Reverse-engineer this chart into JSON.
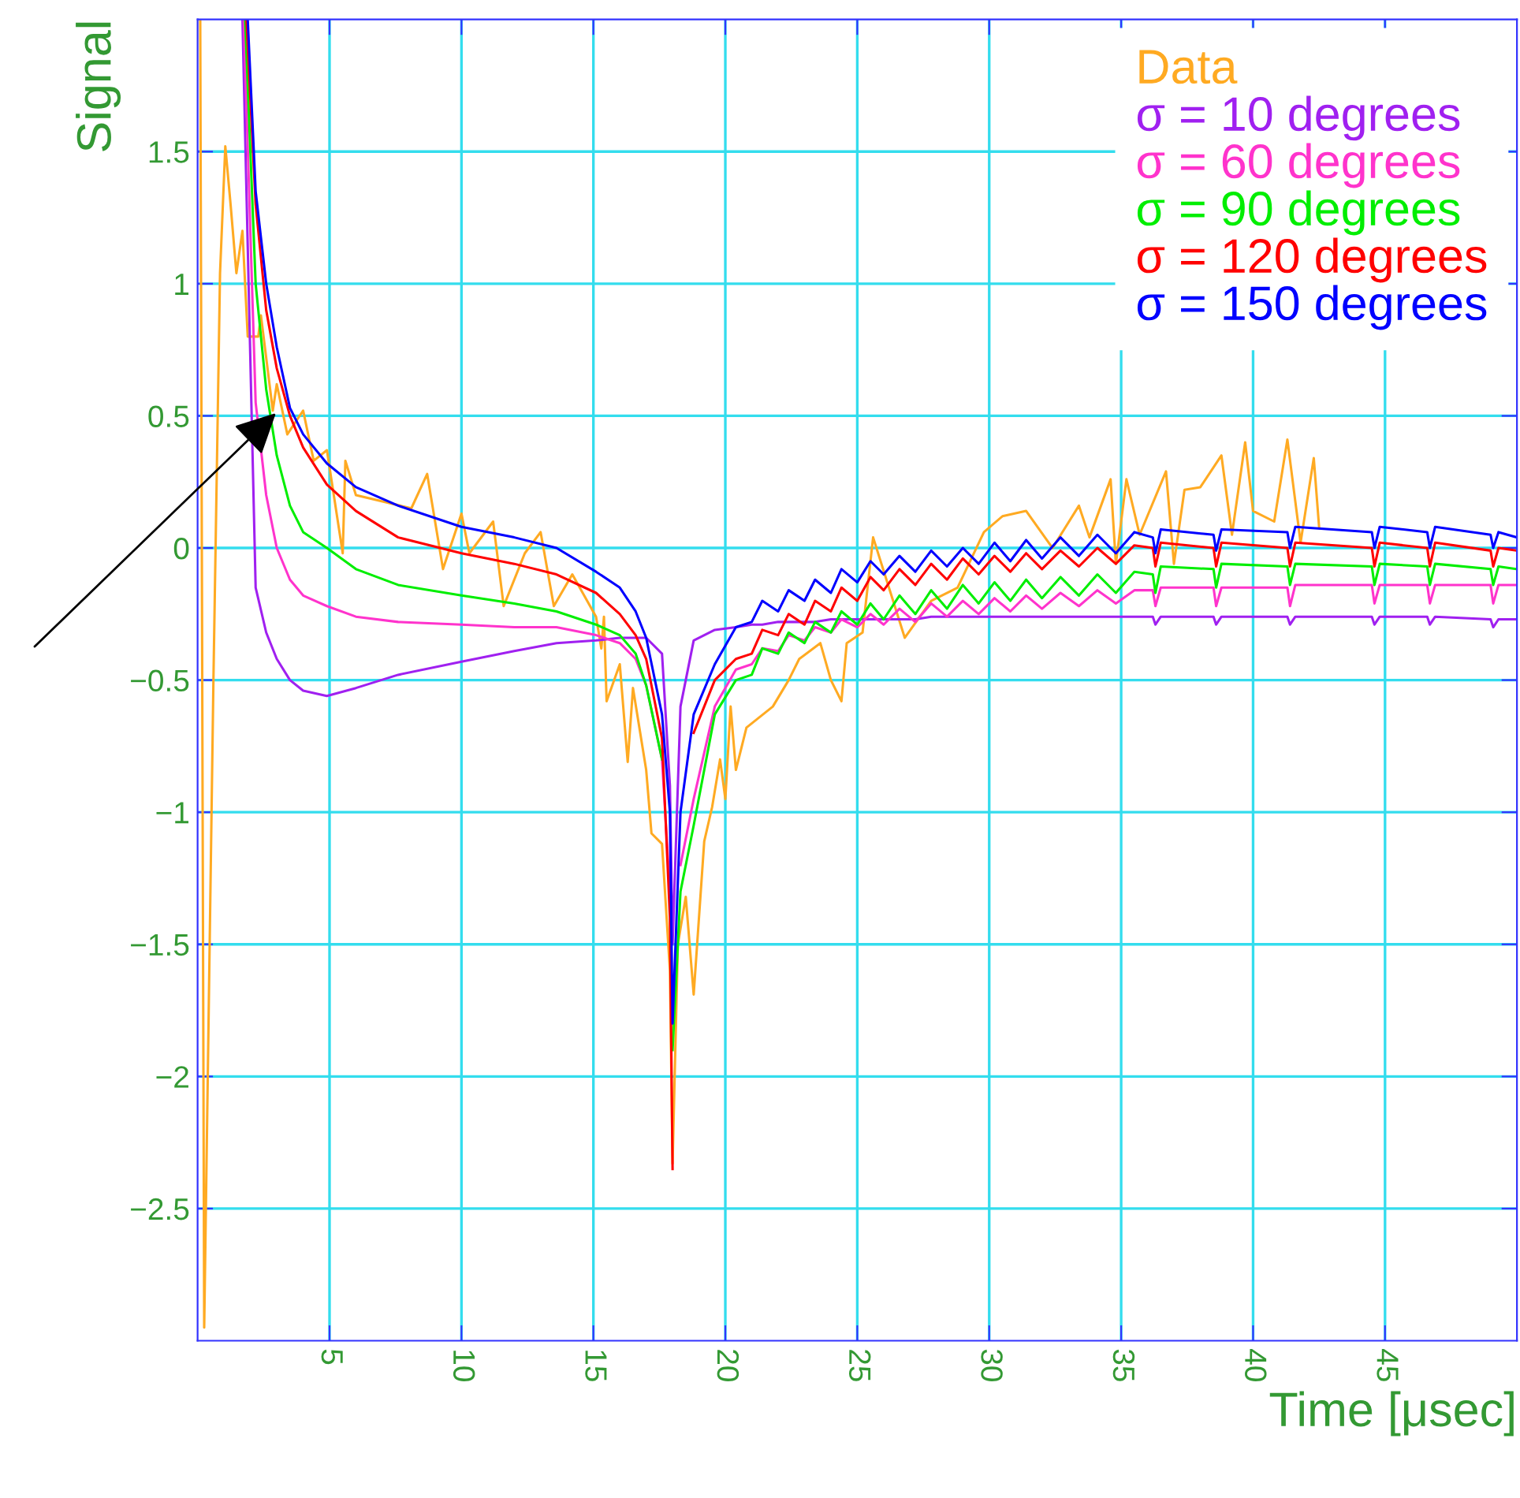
{
  "chart_data": {
    "type": "line",
    "xlabel": "Time [μsec]",
    "ylabel": "Signal",
    "xlim": [
      0,
      50
    ],
    "ylim": [
      -3,
      2
    ],
    "xticks": [
      5,
      10,
      15,
      20,
      25,
      30,
      35,
      40,
      45
    ],
    "yticks": [
      -2.5,
      -2,
      -1.5,
      -1,
      -0.5,
      0,
      0.5,
      1,
      1.5
    ],
    "grid": true,
    "legend": "top right",
    "marker": "none",
    "line_style": "solid",
    "series": [
      {
        "name": "Data",
        "color": "#ffaa22",
        "x": [
          0.1,
          0.25,
          0.6,
          0.85,
          1.05,
          1.25,
          1.47,
          1.7,
          1.9,
          2.3,
          2.4,
          2.85,
          3.0,
          3.4,
          4.0,
          4.4,
          4.9,
          5.5,
          5.6,
          6.0,
          8.1,
          8.7,
          9.3,
          10.0,
          10.3,
          11.2,
          11.6,
          12.4,
          13.0,
          13.5,
          14.2,
          15.1,
          15.3,
          15.4,
          15.5,
          16.0,
          16.3,
          16.5,
          17.0,
          17.2,
          17.6,
          17.9,
          18.0,
          18.2,
          18.5,
          18.8,
          19.2,
          19.5,
          19.8,
          20.0,
          20.2,
          20.4,
          20.8,
          21.8,
          22.4,
          22.8,
          23.6,
          24.0,
          24.4,
          24.6,
          25.2,
          25.6,
          26.8,
          27.8,
          28.8,
          29.8,
          30.5,
          31.4,
          32.4,
          33.4,
          33.8,
          34.6,
          34.8,
          35.2,
          35.7,
          36.7,
          37.0,
          37.4,
          38.0,
          38.8,
          39.2,
          39.7,
          40.0,
          40.8,
          41.3,
          41.8,
          42.3,
          42.5
        ],
        "values": [
          2.0,
          -2.95,
          -0.5,
          1.04,
          1.52,
          1.3,
          1.04,
          1.2,
          0.8,
          0.8,
          0.88,
          0.52,
          0.62,
          0.43,
          0.52,
          0.33,
          0.37,
          -0.02,
          0.33,
          0.2,
          0.15,
          0.28,
          -0.08,
          0.13,
          -0.02,
          0.1,
          -0.22,
          -0.02,
          0.06,
          -0.22,
          -0.1,
          -0.26,
          -0.38,
          -0.26,
          -0.58,
          -0.44,
          -0.81,
          -0.53,
          -0.84,
          -1.08,
          -1.12,
          -1.6,
          -2.33,
          -1.5,
          -1.32,
          -1.69,
          -1.11,
          -0.98,
          -0.8,
          -0.95,
          -0.6,
          -0.84,
          -0.68,
          -0.6,
          -0.5,
          -0.42,
          -0.36,
          -0.5,
          -0.58,
          -0.36,
          -0.32,
          0.04,
          -0.34,
          -0.2,
          -0.15,
          0.06,
          0.12,
          0.14,
          0.0,
          0.16,
          0.04,
          0.26,
          -0.06,
          0.26,
          0.05,
          0.29,
          -0.06,
          0.22,
          0.23,
          0.35,
          0.05,
          0.4,
          0.14,
          0.1,
          0.41,
          0.02,
          0.34,
          0.08
        ]
      },
      {
        "name": "σ = 10 degrees",
        "color": "#a020f0",
        "x": [
          1.7,
          2.2,
          2.6,
          3.0,
          3.5,
          4.0,
          4.9,
          6.0,
          7.6,
          10.0,
          12.0,
          13.6,
          15.1,
          16.0,
          16.6,
          17.0,
          17.6,
          17.9,
          18.0,
          18.3,
          18.8,
          19.6,
          20.4,
          21.0,
          21.4,
          22.0,
          22.4,
          23.0,
          23.4,
          24.0,
          24.4,
          25.0,
          25.5,
          26.0,
          26.6,
          27.2,
          27.8,
          28.4,
          29.0,
          29.6,
          30.2,
          30.8,
          31.4,
          32.0,
          32.7,
          33.4,
          34.1,
          34.8,
          35.5,
          36.2,
          36.3,
          36.5,
          38.5,
          38.6,
          38.8,
          41.3,
          41.4,
          41.6,
          44.5,
          44.6,
          44.8,
          46.6,
          46.7,
          46.9,
          49.0,
          49.1,
          49.3,
          50.0
        ],
        "values": [
          2.0,
          -0.15,
          -0.32,
          -0.42,
          -0.5,
          -0.54,
          -0.56,
          -0.53,
          -0.48,
          -0.43,
          -0.39,
          -0.36,
          -0.35,
          -0.34,
          -0.34,
          -0.34,
          -0.4,
          -0.9,
          -1.5,
          -0.6,
          -0.35,
          -0.31,
          -0.3,
          -0.29,
          -0.29,
          -0.28,
          -0.28,
          -0.28,
          -0.28,
          -0.27,
          -0.27,
          -0.27,
          -0.27,
          -0.27,
          -0.27,
          -0.27,
          -0.26,
          -0.26,
          -0.26,
          -0.26,
          -0.26,
          -0.26,
          -0.26,
          -0.26,
          -0.26,
          -0.26,
          -0.26,
          -0.26,
          -0.26,
          -0.26,
          -0.29,
          -0.26,
          -0.26,
          -0.29,
          -0.26,
          -0.26,
          -0.29,
          -0.26,
          -0.26,
          -0.29,
          -0.26,
          -0.26,
          -0.29,
          -0.26,
          -0.27,
          -0.3,
          -0.27,
          -0.27
        ]
      },
      {
        "name": "σ = 60 degrees",
        "color": "#ff33cc",
        "x": [
          1.75,
          2.2,
          2.6,
          3.0,
          3.5,
          4.0,
          4.9,
          6.0,
          7.6,
          10.0,
          12.0,
          13.6,
          15.1,
          16.0,
          16.6,
          17.0,
          17.6,
          17.9,
          18.0,
          18.3,
          18.8,
          19.6,
          20.4,
          21.0,
          21.4,
          22.0,
          22.4,
          23.0,
          23.4,
          24.0,
          24.4,
          25.0,
          25.5,
          26.0,
          26.6,
          27.2,
          27.8,
          28.4,
          29.0,
          29.6,
          30.2,
          30.8,
          31.4,
          32.0,
          32.7,
          33.4,
          34.1,
          34.8,
          35.5,
          36.2,
          36.3,
          36.5,
          38.5,
          38.6,
          38.8,
          41.3,
          41.4,
          41.6,
          44.5,
          44.6,
          44.8,
          46.6,
          46.7,
          46.9,
          49.0,
          49.1,
          49.3,
          50.0
        ],
        "values": [
          2.0,
          0.55,
          0.2,
          0.0,
          -0.12,
          -0.18,
          -0.22,
          -0.26,
          -0.28,
          -0.29,
          -0.3,
          -0.3,
          -0.33,
          -0.36,
          -0.42,
          -0.52,
          -0.8,
          -1.3,
          null,
          -1.2,
          -0.95,
          -0.6,
          -0.46,
          -0.44,
          -0.38,
          -0.39,
          -0.33,
          -0.35,
          -0.3,
          -0.32,
          -0.27,
          -0.3,
          -0.25,
          -0.29,
          -0.23,
          -0.28,
          -0.21,
          -0.26,
          -0.2,
          -0.25,
          -0.19,
          -0.24,
          -0.18,
          -0.23,
          -0.17,
          -0.22,
          -0.16,
          -0.21,
          -0.16,
          -0.16,
          -0.22,
          -0.15,
          -0.15,
          -0.22,
          -0.15,
          -0.15,
          -0.22,
          -0.14,
          -0.14,
          -0.21,
          -0.14,
          -0.14,
          -0.21,
          -0.14,
          -0.14,
          -0.21,
          -0.14,
          -0.14
        ]
      },
      {
        "name": "σ = 90 degrees",
        "color": "#00ee00",
        "x": [
          1.8,
          2.2,
          2.6,
          3.0,
          3.5,
          4.0,
          4.9,
          6.0,
          7.6,
          10.0,
          12.0,
          13.6,
          15.1,
          16.0,
          16.6,
          17.0,
          17.6,
          17.9,
          18.0,
          18.3,
          18.8,
          19.6,
          20.4,
          21.0,
          21.4,
          22.0,
          22.4,
          23.0,
          23.4,
          24.0,
          24.4,
          25.0,
          25.5,
          26.0,
          26.6,
          27.2,
          27.8,
          28.4,
          29.0,
          29.6,
          30.2,
          30.8,
          31.4,
          32.0,
          32.7,
          33.4,
          34.1,
          34.8,
          35.5,
          36.2,
          36.3,
          36.5,
          38.5,
          38.6,
          38.8,
          41.3,
          41.4,
          41.6,
          44.5,
          44.6,
          44.8,
          46.6,
          46.7,
          46.9,
          49.0,
          49.1,
          49.3,
          50.0
        ],
        "values": [
          2.0,
          1.0,
          0.6,
          0.35,
          0.16,
          0.06,
          0.0,
          -0.08,
          -0.14,
          -0.18,
          -0.21,
          -0.24,
          -0.29,
          -0.33,
          -0.4,
          -0.52,
          -0.8,
          null,
          -1.9,
          -1.3,
          -1.05,
          -0.63,
          -0.5,
          -0.48,
          -0.38,
          -0.4,
          -0.32,
          -0.36,
          -0.28,
          -0.32,
          -0.24,
          -0.29,
          -0.21,
          -0.27,
          -0.18,
          -0.25,
          -0.16,
          -0.23,
          -0.14,
          -0.21,
          -0.13,
          -0.2,
          -0.12,
          -0.19,
          -0.11,
          -0.18,
          -0.1,
          -0.17,
          -0.09,
          -0.1,
          -0.17,
          -0.07,
          -0.08,
          -0.15,
          -0.06,
          -0.07,
          -0.14,
          -0.06,
          -0.07,
          -0.14,
          -0.06,
          -0.07,
          -0.14,
          -0.06,
          -0.08,
          -0.14,
          -0.07,
          -0.08
        ]
      },
      {
        "name": "σ = 120 degrees",
        "color": "#ff0000",
        "x": [
          1.85,
          2.2,
          2.6,
          3.0,
          3.5,
          4.0,
          4.9,
          6.0,
          7.6,
          10.0,
          12.0,
          13.6,
          15.1,
          16.0,
          16.6,
          17.0,
          17.6,
          17.9,
          18.0,
          18.3,
          18.8,
          19.6,
          20.4,
          21.0,
          21.4,
          22.0,
          22.4,
          23.0,
          23.4,
          24.0,
          24.4,
          25.0,
          25.5,
          26.0,
          26.6,
          27.2,
          27.8,
          28.4,
          29.0,
          29.6,
          30.2,
          30.8,
          31.4,
          32.0,
          32.7,
          33.4,
          34.1,
          34.8,
          35.5,
          36.2,
          36.3,
          36.5,
          38.5,
          38.6,
          38.8,
          41.3,
          41.4,
          41.6,
          44.5,
          44.6,
          44.8,
          46.6,
          46.7,
          46.9,
          49.0,
          49.1,
          49.3,
          50.0
        ],
        "values": [
          2.0,
          1.3,
          0.9,
          0.68,
          0.5,
          0.38,
          0.24,
          0.14,
          0.04,
          -0.02,
          -0.06,
          -0.1,
          -0.17,
          -0.25,
          -0.33,
          -0.42,
          -0.72,
          -1.4,
          -2.35,
          null,
          -0.7,
          -0.5,
          -0.42,
          -0.4,
          -0.31,
          -0.33,
          -0.25,
          -0.29,
          -0.2,
          -0.24,
          -0.15,
          -0.2,
          -0.11,
          -0.16,
          -0.08,
          -0.14,
          -0.06,
          -0.12,
          -0.04,
          -0.1,
          -0.03,
          -0.09,
          -0.02,
          -0.08,
          -0.01,
          -0.07,
          0.0,
          -0.06,
          0.01,
          0.0,
          -0.07,
          0.02,
          0.0,
          -0.07,
          0.02,
          0.0,
          -0.07,
          0.02,
          0.0,
          -0.07,
          0.02,
          0.0,
          -0.07,
          0.02,
          -0.01,
          -0.07,
          0.0,
          -0.01
        ]
      },
      {
        "name": "σ = 150 degrees",
        "color": "#0000ff",
        "x": [
          1.9,
          2.2,
          2.6,
          3.0,
          3.5,
          4.0,
          4.9,
          6.0,
          7.6,
          10.0,
          12.0,
          13.6,
          15.1,
          16.0,
          16.6,
          17.0,
          17.6,
          17.9,
          18.0,
          18.3,
          18.8,
          19.6,
          20.4,
          21.0,
          21.4,
          22.0,
          22.4,
          23.0,
          23.4,
          24.0,
          24.4,
          25.0,
          25.5,
          26.0,
          26.6,
          27.2,
          27.8,
          28.4,
          29.0,
          29.6,
          30.2,
          30.8,
          31.4,
          32.0,
          32.7,
          33.4,
          34.1,
          34.8,
          35.5,
          36.2,
          36.3,
          36.5,
          38.5,
          38.6,
          38.8,
          41.3,
          41.4,
          41.6,
          44.5,
          44.6,
          44.8,
          46.6,
          46.7,
          46.9,
          49.0,
          49.1,
          49.3,
          50.0
        ],
        "values": [
          2.0,
          1.35,
          1.0,
          0.76,
          0.53,
          0.43,
          0.32,
          0.23,
          0.16,
          0.08,
          0.04,
          0.0,
          -0.09,
          -0.15,
          -0.24,
          -0.34,
          -0.63,
          -1.0,
          -1.8,
          -1.0,
          -0.63,
          -0.44,
          -0.3,
          -0.28,
          -0.2,
          -0.24,
          -0.16,
          -0.2,
          -0.12,
          -0.17,
          -0.08,
          -0.13,
          -0.05,
          -0.1,
          -0.03,
          -0.09,
          -0.01,
          -0.07,
          0.0,
          -0.06,
          0.02,
          -0.05,
          0.03,
          -0.04,
          0.04,
          -0.03,
          0.05,
          -0.02,
          0.06,
          0.04,
          -0.02,
          0.07,
          0.05,
          -0.01,
          0.07,
          0.06,
          0.0,
          0.08,
          0.06,
          0.0,
          0.08,
          0.06,
          0.0,
          0.08,
          0.05,
          0.0,
          0.06,
          0.04
        ]
      }
    ]
  }
}
